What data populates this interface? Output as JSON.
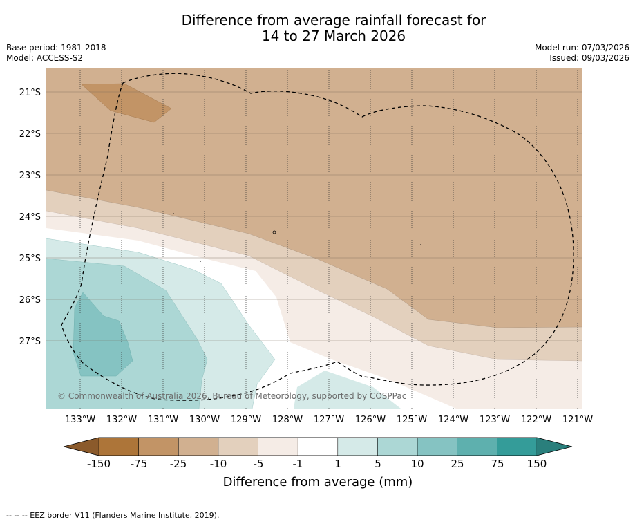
{
  "title": {
    "line1": "Difference from average rainfall forecast for",
    "line2": "14 to 27 March 2026"
  },
  "meta": {
    "base_period": "Base period: 1981-2018",
    "model": "Model: ACCESS-S2",
    "model_run": "Model run: 07/03/2026",
    "issued": "Issued: 09/03/2026"
  },
  "map": {
    "lat_labels": [
      "21°S",
      "22°S",
      "23°S",
      "24°S",
      "25°S",
      "26°S",
      "27°S"
    ],
    "lon_labels": [
      "133°W",
      "132°W",
      "131°W",
      "130°W",
      "129°W",
      "128°W",
      "127°W",
      "126°W",
      "125°W",
      "124°W",
      "123°W",
      "122°W",
      "121°W"
    ],
    "copyright": "© Commonwealth of Australia 2026, Bureau of Meteorology, supported by COSPPac"
  },
  "colorbar": {
    "labels": [
      "-150",
      "-75",
      "-25",
      "-10",
      "-5",
      "-1",
      "1",
      "5",
      "10",
      "25",
      "75",
      "150"
    ],
    "colors": [
      "#ad7539",
      "#c29466",
      "#d1b090",
      "#e3d0bd",
      "#f5ece6",
      "#ffffff",
      "#d5eae8",
      "#acd7d5",
      "#85c3c2",
      "#5eb0ae",
      "#349c99"
    ],
    "under_color": "#8b5a2b",
    "over_color": "#2a7f7c",
    "title": "Difference from average (mm)"
  },
  "footer": "-- -- -- EEZ border V11 (Flanders Marine Institute, 2019)."
}
